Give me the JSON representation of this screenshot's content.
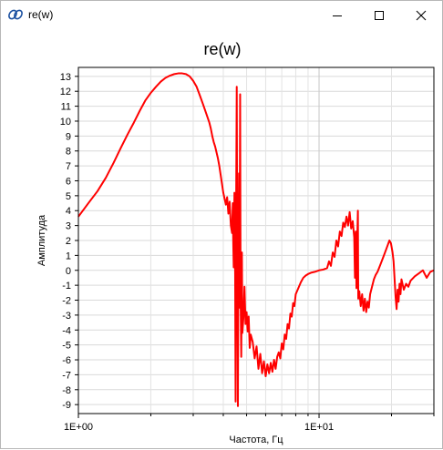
{
  "window": {
    "title": "re(w)",
    "icon": "chart-app-icon",
    "controls": [
      "minimize-icon",
      "maximize-icon",
      "close-icon"
    ]
  },
  "chart_data": {
    "type": "line",
    "title": "re(w)",
    "xlabel": "Частота, Гц",
    "ylabel": "Амплитуда",
    "x_scale": "log",
    "xlim": [
      1.0,
      30.0
    ],
    "ylim": [
      -9.6,
      13.6
    ],
    "x_ticks": [
      {
        "value": 1.0,
        "label": "1E+00"
      },
      {
        "value": 10.0,
        "label": "1E+01"
      }
    ],
    "y_ticks": [
      -9,
      -8,
      -7,
      -6,
      -5,
      -4,
      -3,
      -2,
      -1,
      0,
      1,
      2,
      3,
      4,
      5,
      6,
      7,
      8,
      9,
      10,
      11,
      12,
      13
    ],
    "grid": true,
    "series": [
      {
        "color": "#ff0000",
        "points": [
          [
            1.0,
            3.6
          ],
          [
            1.1,
            4.5
          ],
          [
            1.2,
            5.3
          ],
          [
            1.3,
            6.2
          ],
          [
            1.4,
            7.2
          ],
          [
            1.5,
            8.2
          ],
          [
            1.6,
            9.1
          ],
          [
            1.7,
            9.9
          ],
          [
            1.8,
            10.7
          ],
          [
            1.9,
            11.4
          ],
          [
            2.0,
            11.9
          ],
          [
            2.1,
            12.3
          ],
          [
            2.2,
            12.65
          ],
          [
            2.3,
            12.9
          ],
          [
            2.4,
            13.05
          ],
          [
            2.5,
            13.15
          ],
          [
            2.6,
            13.2
          ],
          [
            2.7,
            13.2
          ],
          [
            2.8,
            13.15
          ],
          [
            2.9,
            13.0
          ],
          [
            3.0,
            12.7
          ],
          [
            3.1,
            12.3
          ],
          [
            3.2,
            11.7
          ],
          [
            3.3,
            11.1
          ],
          [
            3.4,
            10.5
          ],
          [
            3.5,
            9.9
          ],
          [
            3.55,
            9.5
          ],
          [
            3.6,
            9.0
          ],
          [
            3.65,
            8.6
          ],
          [
            3.7,
            8.3
          ],
          [
            3.75,
            7.9
          ],
          [
            3.8,
            7.5
          ],
          [
            3.85,
            7.0
          ],
          [
            3.9,
            6.4
          ],
          [
            3.95,
            5.8
          ],
          [
            4.0,
            5.2
          ],
          [
            4.05,
            4.8
          ],
          [
            4.1,
            4.4
          ],
          [
            4.15,
            4.9
          ],
          [
            4.2,
            3.8
          ],
          [
            4.25,
            4.6
          ],
          [
            4.3,
            3.0
          ],
          [
            4.35,
            2.5
          ],
          [
            4.38,
            4.5
          ],
          [
            4.4,
            1.8
          ],
          [
            4.42,
            0.2
          ],
          [
            4.45,
            5.2
          ],
          [
            4.48,
            -0.3
          ],
          [
            4.5,
            -8.8
          ],
          [
            4.52,
            3.5
          ],
          [
            4.55,
            12.3
          ],
          [
            4.57,
            1.8
          ],
          [
            4.6,
            -9.1
          ],
          [
            4.62,
            -0.5
          ],
          [
            4.65,
            6.5
          ],
          [
            4.67,
            -2.5
          ],
          [
            4.7,
            11.8
          ],
          [
            4.72,
            -1.5
          ],
          [
            4.75,
            -5.8
          ],
          [
            4.78,
            1.2
          ],
          [
            4.8,
            -4.2
          ],
          [
            4.85,
            -3.2
          ],
          [
            4.9,
            -1.1
          ],
          [
            4.95,
            -3.6
          ],
          [
            5.0,
            -2.8
          ],
          [
            5.05,
            -4.1
          ],
          [
            5.1,
            -3.1
          ],
          [
            5.15,
            -5.2
          ],
          [
            5.2,
            -4.3
          ],
          [
            5.3,
            -4.8
          ],
          [
            5.4,
            -5.9
          ],
          [
            5.5,
            -5.1
          ],
          [
            5.6,
            -6.6
          ],
          [
            5.7,
            -5.6
          ],
          [
            5.8,
            -6.9
          ],
          [
            5.9,
            -6.1
          ],
          [
            6.0,
            -7.1
          ],
          [
            6.1,
            -6.3
          ],
          [
            6.2,
            -6.9
          ],
          [
            6.3,
            -6.2
          ],
          [
            6.4,
            -6.8
          ],
          [
            6.5,
            -6.0
          ],
          [
            6.6,
            -6.6
          ],
          [
            6.7,
            -5.8
          ],
          [
            6.8,
            -5.5
          ],
          [
            6.9,
            -5.9
          ],
          [
            7.0,
            -4.9
          ],
          [
            7.1,
            -5.3
          ],
          [
            7.2,
            -4.3
          ],
          [
            7.3,
            -4.6
          ],
          [
            7.4,
            -3.6
          ],
          [
            7.5,
            -3.9
          ],
          [
            7.6,
            -2.9
          ],
          [
            7.7,
            -3.1
          ],
          [
            7.8,
            -2.2
          ],
          [
            7.9,
            -2.4
          ],
          [
            8.0,
            -1.6
          ],
          [
            8.2,
            -1.2
          ],
          [
            8.4,
            -0.8
          ],
          [
            8.6,
            -0.5
          ],
          [
            8.8,
            -0.35
          ],
          [
            9.0,
            -0.25
          ],
          [
            9.3,
            -0.15
          ],
          [
            9.6,
            -0.1
          ],
          [
            10.0,
            0.0
          ],
          [
            10.4,
            0.05
          ],
          [
            10.8,
            0.15
          ],
          [
            11.0,
            0.6
          ],
          [
            11.2,
            0.3
          ],
          [
            11.4,
            1.2
          ],
          [
            11.6,
            0.9
          ],
          [
            11.8,
            2.0
          ],
          [
            12.0,
            1.6
          ],
          [
            12.2,
            2.6
          ],
          [
            12.4,
            2.3
          ],
          [
            12.6,
            3.2
          ],
          [
            12.8,
            2.9
          ],
          [
            13.0,
            3.6
          ],
          [
            13.2,
            3.0
          ],
          [
            13.4,
            3.9
          ],
          [
            13.6,
            2.8
          ],
          [
            13.8,
            3.3
          ],
          [
            14.0,
            2.2
          ],
          [
            14.1,
            -0.5
          ],
          [
            14.2,
            2.6
          ],
          [
            14.3,
            -1.2
          ],
          [
            14.4,
            1.8
          ],
          [
            14.5,
            4.0
          ],
          [
            14.55,
            -1.9
          ],
          [
            14.7,
            -1.4
          ],
          [
            14.9,
            -2.4
          ],
          [
            15.1,
            -1.6
          ],
          [
            15.3,
            -2.7
          ],
          [
            15.5,
            -1.9
          ],
          [
            15.7,
            -2.8
          ],
          [
            15.9,
            -2.1
          ],
          [
            16.1,
            -2.5
          ],
          [
            16.3,
            -1.6
          ],
          [
            16.6,
            -1.1
          ],
          [
            16.9,
            -0.6
          ],
          [
            17.2,
            -0.3
          ],
          [
            17.5,
            -0.1
          ],
          [
            17.8,
            0.2
          ],
          [
            18.1,
            0.5
          ],
          [
            18.4,
            0.8
          ],
          [
            18.7,
            1.1
          ],
          [
            19.0,
            1.4
          ],
          [
            19.3,
            1.7
          ],
          [
            19.6,
            2.0
          ],
          [
            19.9,
            1.8
          ],
          [
            20.2,
            1.2
          ],
          [
            20.4,
            0.6
          ],
          [
            20.6,
            -0.6
          ],
          [
            20.8,
            -1.8
          ],
          [
            21.0,
            -2.6
          ],
          [
            21.2,
            -1.3
          ],
          [
            21.4,
            -2.1
          ],
          [
            21.6,
            -0.9
          ],
          [
            21.8,
            -1.6
          ],
          [
            22.0,
            -0.6
          ],
          [
            22.5,
            -1.3
          ],
          [
            23.0,
            -0.9
          ],
          [
            23.5,
            -1.1
          ],
          [
            24.0,
            -0.7
          ],
          [
            25.0,
            -0.4
          ],
          [
            26.0,
            -0.2
          ],
          [
            27.0,
            0.0
          ],
          [
            28.0,
            -0.5
          ],
          [
            29.0,
            -0.1
          ],
          [
            30.0,
            0.0
          ]
        ]
      }
    ]
  }
}
